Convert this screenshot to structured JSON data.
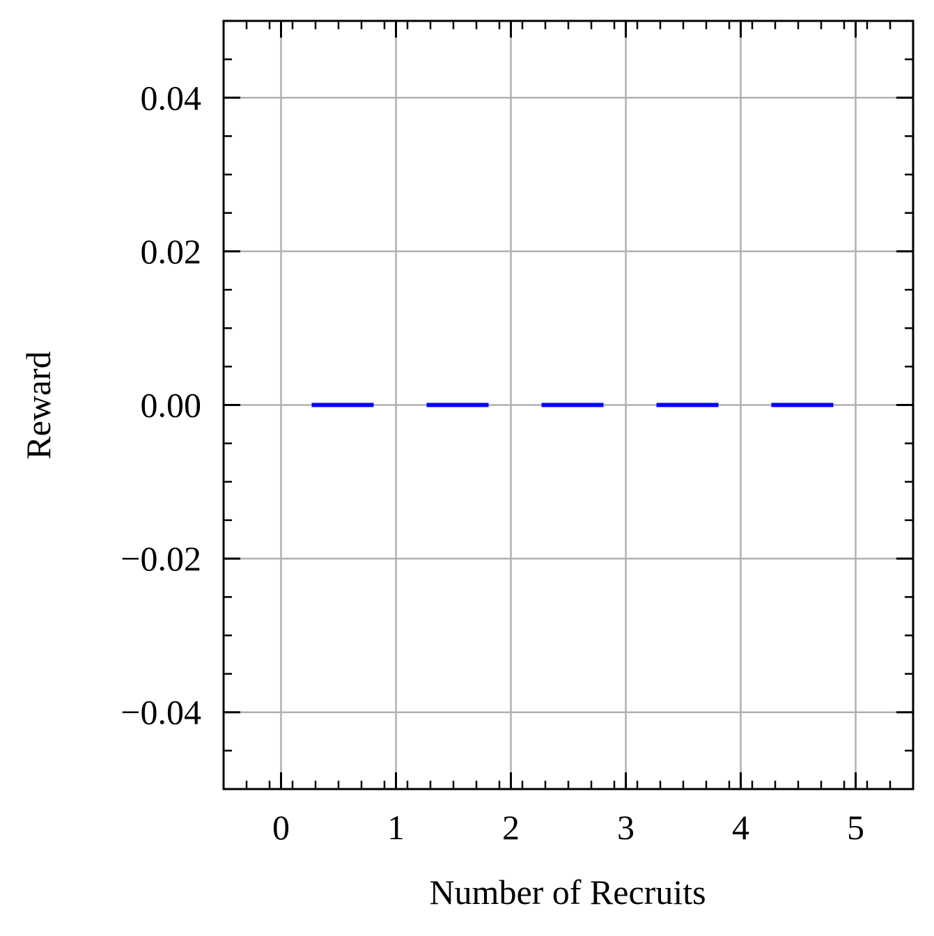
{
  "chart_data": {
    "type": "line",
    "title": "",
    "xlabel": "Number of Recruits",
    "ylabel": "Reward",
    "x": [
      0,
      1,
      2,
      3,
      4,
      5
    ],
    "series": [
      {
        "values": [
          0,
          0,
          0,
          0,
          0,
          0
        ],
        "color": "#0000ff",
        "line_style": "dashed"
      }
    ],
    "xlim": [
      -0.5,
      5.5
    ],
    "ylim": [
      -0.05,
      0.05
    ],
    "xticks": [
      0,
      1,
      2,
      3,
      4,
      5
    ],
    "xtick_labels": [
      "0",
      "1",
      "2",
      "3",
      "4",
      "5"
    ],
    "yticks": [
      -0.04,
      -0.02,
      0.0,
      0.02,
      0.04
    ],
    "ytick_labels": [
      "−0.04",
      "−0.02",
      "0.00",
      "0.02",
      "0.04"
    ],
    "x_minor_step": 0.2,
    "y_minor_step": 0.005,
    "grid": true,
    "grid_color": "#b0b0b0",
    "legend": "none"
  }
}
